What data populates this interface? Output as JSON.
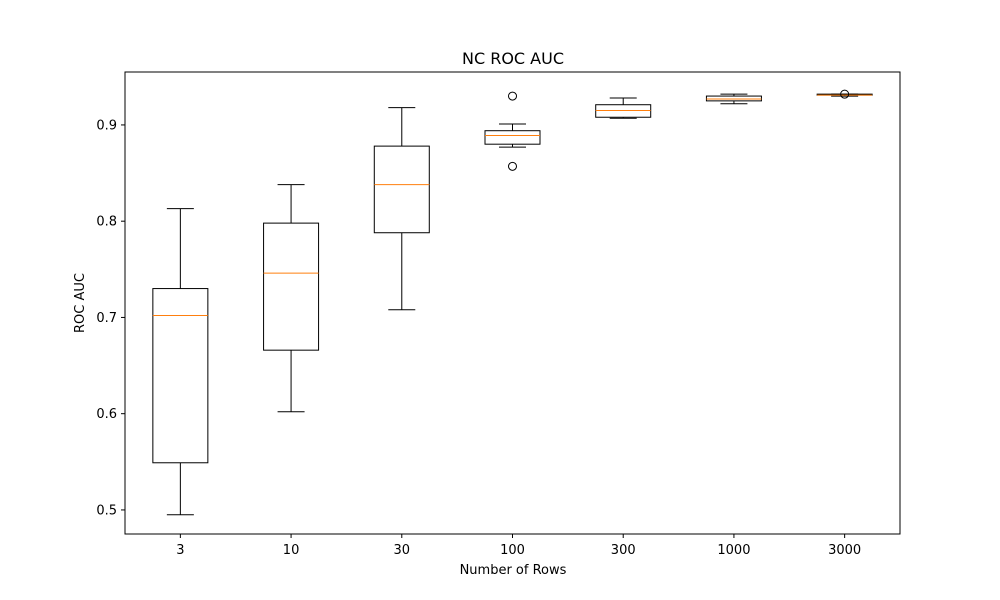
{
  "chart_data": {
    "type": "box",
    "title": "NC ROC AUC",
    "xlabel": "Number of Rows",
    "ylabel": "ROC AUC",
    "categories": [
      "3",
      "10",
      "30",
      "100",
      "300",
      "1000",
      "3000"
    ],
    "ylim": [
      0.475,
      0.955
    ],
    "yticks": [
      0.5,
      0.6,
      0.7,
      0.8,
      0.9
    ],
    "ytick_labels": [
      "0.5",
      "0.6",
      "0.7",
      "0.8",
      "0.9"
    ],
    "boxes": [
      {
        "whisker_low": 0.495,
        "q1": 0.549,
        "median": 0.702,
        "q3": 0.73,
        "whisker_high": 0.813,
        "outliers": []
      },
      {
        "whisker_low": 0.602,
        "q1": 0.666,
        "median": 0.746,
        "q3": 0.798,
        "whisker_high": 0.838,
        "outliers": []
      },
      {
        "whisker_low": 0.708,
        "q1": 0.788,
        "median": 0.838,
        "q3": 0.878,
        "whisker_high": 0.918,
        "outliers": []
      },
      {
        "whisker_low": 0.877,
        "q1": 0.88,
        "median": 0.889,
        "q3": 0.894,
        "whisker_high": 0.901,
        "outliers": [
          0.93,
          0.857
        ]
      },
      {
        "whisker_low": 0.907,
        "q1": 0.908,
        "median": 0.915,
        "q3": 0.921,
        "whisker_high": 0.928,
        "outliers": []
      },
      {
        "whisker_low": 0.922,
        "q1": 0.925,
        "median": 0.927,
        "q3": 0.93,
        "whisker_high": 0.932,
        "outliers": []
      },
      {
        "whisker_low": 0.93,
        "q1": 0.931,
        "median": 0.931,
        "q3": 0.932,
        "whisker_high": 0.932,
        "outliers": [
          0.932
        ]
      }
    ],
    "colors": {
      "box": "#000000",
      "median": "#ff7f0e"
    },
    "grid": false,
    "legend": "none"
  }
}
